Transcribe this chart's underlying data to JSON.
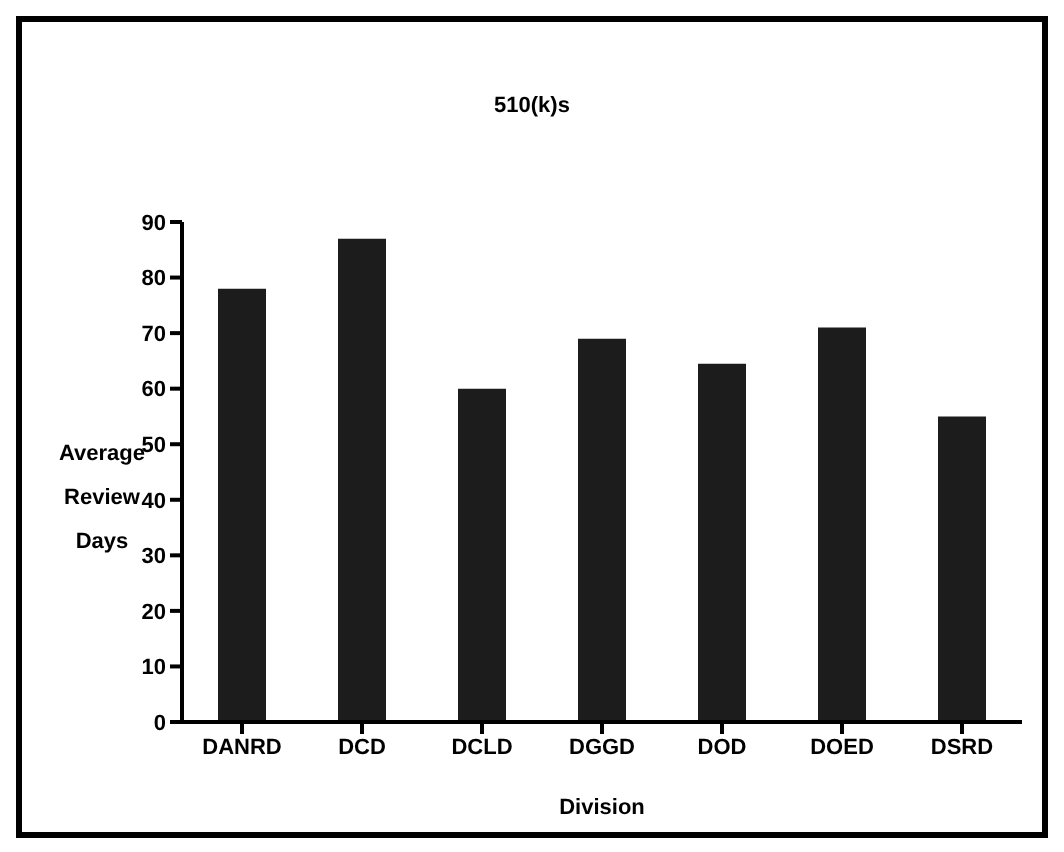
{
  "chart_data": {
    "type": "bar",
    "title": "510(k)s",
    "xlabel": "Division",
    "ylabel": "Average Review Days",
    "categories": [
      "DANRD",
      "DCD",
      "DCLD",
      "DGGD",
      "DOD",
      "DOED",
      "DSRD"
    ],
    "values": [
      78,
      87,
      60,
      69,
      64.5,
      71,
      55
    ],
    "color": "#1c1c1c",
    "ylim": [
      0,
      90
    ],
    "yticks": [
      0,
      10,
      20,
      30,
      40,
      50,
      60,
      70,
      80,
      90
    ],
    "grid": false,
    "legend": false
  }
}
